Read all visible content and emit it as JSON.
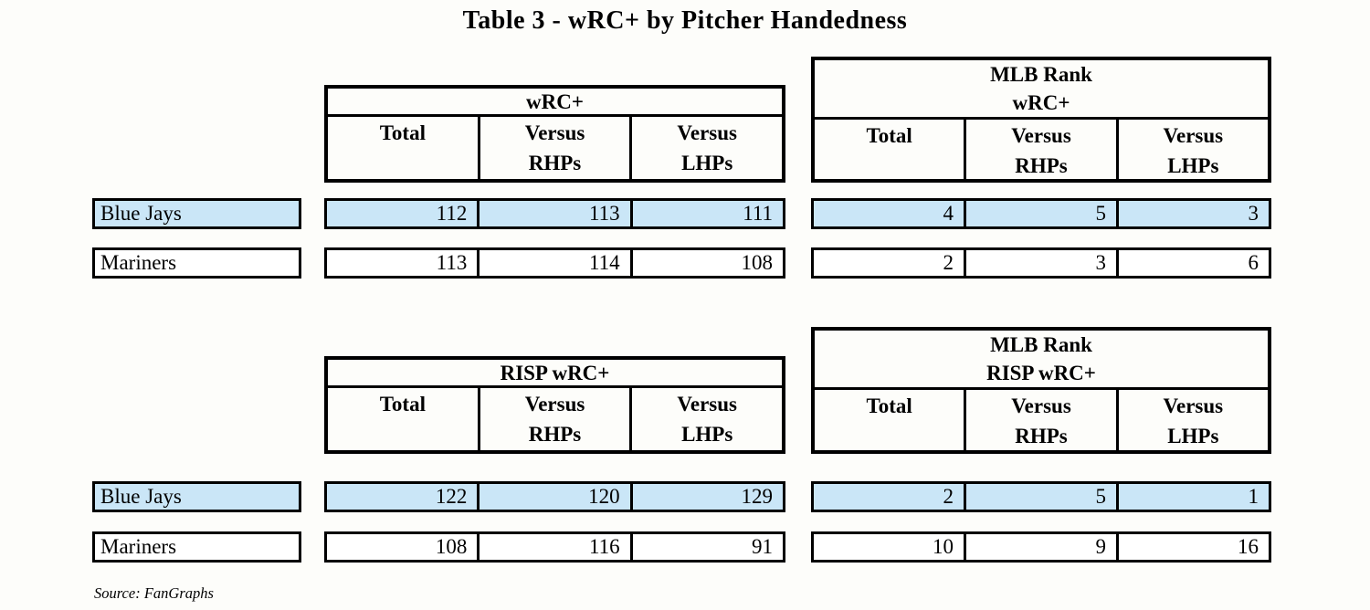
{
  "page": {
    "title": "Table 3 - wRC+ by Pitcher Handedness",
    "source": "Source: FanGraphs"
  },
  "colors": {
    "highlight_blue": "#CAE6F7",
    "border_black": "#000000",
    "background": "#FDFDFA"
  },
  "columns": [
    "Total",
    "Versus\nRHPs",
    "Versus\nLHPs"
  ],
  "sections": [
    {
      "stats_title": "wRC+",
      "rank_title": "MLB Rank\nwRC+",
      "rows": [
        {
          "team": "Blue Jays",
          "highlight": true,
          "stats": [
            "112",
            "113",
            "111"
          ],
          "ranks": [
            "4",
            "5",
            "3"
          ]
        },
        {
          "team": "Mariners",
          "highlight": false,
          "stats": [
            "113",
            "114",
            "108"
          ],
          "ranks": [
            "2",
            "3",
            "6"
          ]
        }
      ]
    },
    {
      "stats_title": "RISP wRC+",
      "rank_title": "MLB Rank\nRISP wRC+",
      "rows": [
        {
          "team": "Blue Jays",
          "highlight": true,
          "stats": [
            "122",
            "120",
            "129"
          ],
          "ranks": [
            "2",
            "5",
            "1"
          ]
        },
        {
          "team": "Mariners",
          "highlight": false,
          "stats": [
            "108",
            "116",
            "91"
          ],
          "ranks": [
            "10",
            "9",
            "16"
          ]
        }
      ]
    }
  ],
  "chart_data": {
    "type": "table",
    "title": "Table 3 - wRC+ by Pitcher Handedness",
    "source": "Source: FanGraphs",
    "tables": [
      {
        "name": "wRC+",
        "columns": [
          "Total",
          "Versus RHPs",
          "Versus LHPs"
        ],
        "rows": [
          {
            "team": "Blue Jays",
            "values": [
              112,
              113,
              111
            ]
          },
          {
            "team": "Mariners",
            "values": [
              113,
              114,
              108
            ]
          }
        ]
      },
      {
        "name": "MLB Rank wRC+",
        "columns": [
          "Total",
          "Versus RHPs",
          "Versus LHPs"
        ],
        "rows": [
          {
            "team": "Blue Jays",
            "values": [
              4,
              5,
              3
            ]
          },
          {
            "team": "Mariners",
            "values": [
              2,
              3,
              6
            ]
          }
        ]
      },
      {
        "name": "RISP wRC+",
        "columns": [
          "Total",
          "Versus RHPs",
          "Versus LHPs"
        ],
        "rows": [
          {
            "team": "Blue Jays",
            "values": [
              122,
              120,
              129
            ]
          },
          {
            "team": "Mariners",
            "values": [
              108,
              116,
              91
            ]
          }
        ]
      },
      {
        "name": "MLB Rank RISP wRC+",
        "columns": [
          "Total",
          "Versus RHPs",
          "Versus LHPs"
        ],
        "rows": [
          {
            "team": "Blue Jays",
            "values": [
              2,
              5,
              1
            ]
          },
          {
            "team": "Mariners",
            "values": [
              10,
              9,
              16
            ]
          }
        ]
      }
    ]
  }
}
